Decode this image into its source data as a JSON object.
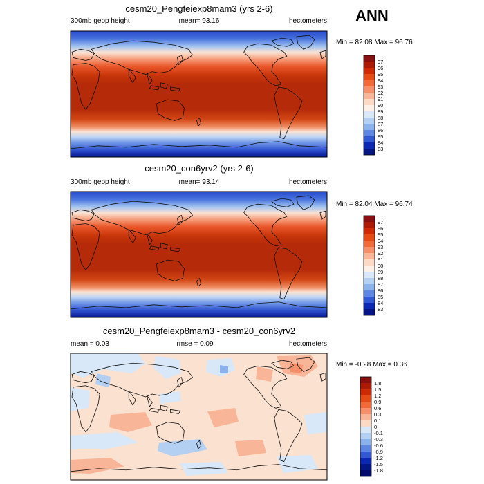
{
  "season": "ANN",
  "chart_data": [
    {
      "type": "contour_map",
      "title": "cesm20_Pengfeiexp8mam3 (yrs 2-6)",
      "left_label": "300mb geop height",
      "mean_label": "mean=  93.16",
      "units": "hectometers",
      "minmax_label": "Min =  82.08 Max =  96.76",
      "min": 82.08,
      "max": 96.76,
      "mean": 93.16,
      "colorbar": {
        "labels": [
          "97",
          "96",
          "95",
          "94",
          "93",
          "92",
          "91",
          "90",
          "89",
          "88",
          "87",
          "86",
          "85",
          "84",
          "83"
        ],
        "colors": [
          "#8a0f0f",
          "#ad1a03",
          "#cf2a04",
          "#e64b15",
          "#f26a3a",
          "#f7906a",
          "#f9b597",
          "#fbd9c4",
          "#fdf0e6",
          "#d8e8f8",
          "#b3cff2",
          "#8cb2ec",
          "#5f86e3",
          "#3258d4",
          "#0c27b4",
          "#041585"
        ]
      }
    },
    {
      "type": "contour_map",
      "title": "cesm20_con6yrv2 (yrs 2-6)",
      "left_label": "300mb geop height",
      "mean_label": "mean=  93.14",
      "units": "hectometers",
      "minmax_label": "Min =  82.04 Max =  96.74",
      "min": 82.04,
      "max": 96.74,
      "mean": 93.14,
      "colorbar": {
        "labels": [
          "97",
          "96",
          "95",
          "94",
          "93",
          "92",
          "91",
          "90",
          "89",
          "88",
          "87",
          "86",
          "85",
          "84",
          "83"
        ],
        "colors": [
          "#8a0f0f",
          "#ad1a03",
          "#cf2a04",
          "#e64b15",
          "#f26a3a",
          "#f7906a",
          "#f9b597",
          "#fbd9c4",
          "#fdf0e6",
          "#d8e8f8",
          "#b3cff2",
          "#8cb2ec",
          "#5f86e3",
          "#3258d4",
          "#0c27b4",
          "#041585"
        ]
      }
    },
    {
      "type": "contour_map",
      "title": "cesm20_Pengfeiexp8mam3 - cesm20_con6yrv2",
      "left_label": "mean =   0.03",
      "mean_label": "rmse =   0.09",
      "units": "hectometers",
      "minmax_label": "Min =  -0.28 Max =   0.36",
      "min": -0.28,
      "max": 0.36,
      "mean": 0.03,
      "rmse": 0.09,
      "colorbar": {
        "labels": [
          "1.8",
          "1.5",
          "1.2",
          "0.9",
          "0.6",
          "0.3",
          "0.1",
          "0",
          "-0.1",
          "-0.3",
          "-0.6",
          "-0.9",
          "-1.2",
          "-1.5",
          "-1.8"
        ],
        "colors": [
          "#8a0f0f",
          "#ad1a03",
          "#cf2a04",
          "#e64b15",
          "#f26a3a",
          "#f7906a",
          "#f9b597",
          "#fbd9c4",
          "#d8e8f8",
          "#b3cff2",
          "#8cb2ec",
          "#5f86e3",
          "#3258d4",
          "#0c27b4",
          "#041585",
          "#020b6b"
        ]
      }
    }
  ]
}
